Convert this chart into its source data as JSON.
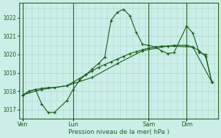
{
  "background_color": "#cceee8",
  "grid_color": "#aad8d0",
  "line_color": "#1a5e1a",
  "xlabel": "Pression niveau de la mer( hPa )",
  "ylim": [
    1016.5,
    1022.8
  ],
  "yticks": [
    1017,
    1018,
    1019,
    1020,
    1021,
    1022
  ],
  "xtick_labels": [
    "Ven",
    "Lun",
    "Sam",
    "Dim"
  ],
  "xtick_positions": [
    0,
    4,
    10,
    13
  ],
  "vline_positions": [
    0,
    4,
    10,
    13
  ],
  "xlim": [
    -0.3,
    15.5
  ],
  "line1_x": [
    0,
    0.5,
    1.0,
    1.5,
    2.0,
    2.5,
    3.5,
    4.0,
    4.5,
    5.0,
    5.5,
    6.0,
    6.5,
    7.0,
    7.5,
    8.0,
    8.5,
    9.0,
    9.5,
    10.0,
    10.5,
    11.0,
    11.5,
    12.0,
    13.0,
    13.5,
    14.0,
    14.5,
    15.0
  ],
  "line1_y": [
    1017.8,
    1018.0,
    1018.1,
    1018.15,
    1018.2,
    1018.2,
    1018.3,
    1018.5,
    1018.7,
    1018.9,
    1019.1,
    1019.3,
    1019.45,
    1019.6,
    1019.75,
    1019.9,
    1020.05,
    1020.15,
    1020.25,
    1020.35,
    1020.4,
    1020.45,
    1020.45,
    1020.5,
    1020.5,
    1020.4,
    1020.2,
    1019.9,
    1018.5
  ],
  "line2_x": [
    0,
    0.5,
    1.0,
    1.5,
    2.0,
    2.5,
    3.5,
    4.0,
    4.5,
    5.0,
    5.5,
    6.0,
    6.5,
    7.0,
    7.5,
    8.0,
    8.5,
    9.0,
    9.5,
    10.0,
    10.5,
    11.0,
    11.5,
    12.0,
    13.0,
    13.5,
    14.0,
    14.5,
    15.0
  ],
  "line2_y": [
    1017.8,
    1018.0,
    1018.1,
    1017.3,
    1016.85,
    1016.85,
    1017.5,
    1018.1,
    1018.6,
    1018.9,
    1019.2,
    1019.5,
    1019.85,
    1021.85,
    1022.3,
    1022.45,
    1022.1,
    1021.2,
    1020.55,
    1020.5,
    1020.4,
    1020.2,
    1020.05,
    1020.1,
    1021.55,
    1021.15,
    1020.1,
    1020.0,
    1018.5
  ],
  "line3_x": [
    0,
    1.5,
    3.5,
    5.5,
    7.5,
    9.5,
    11.5,
    13.5,
    15.0
  ],
  "line3_y": [
    1017.8,
    1018.1,
    1018.3,
    1018.75,
    1019.5,
    1020.2,
    1020.45,
    1020.4,
    1018.5
  ]
}
